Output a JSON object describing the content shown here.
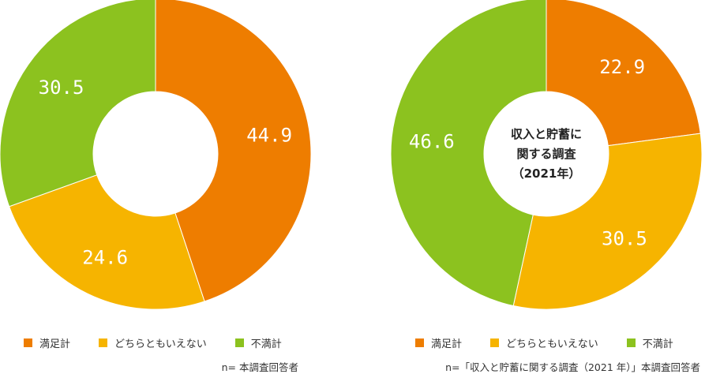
{
  "colors": {
    "satisfied": "#EE7D00",
    "neutral": "#F6B400",
    "dissatisfied": "#8CC21F"
  },
  "chart_data": [
    {
      "type": "pie",
      "title": "",
      "categories": [
        "満足計",
        "どちらともいえない",
        "不満計"
      ],
      "values": [
        44.9,
        24.6,
        30.5
      ],
      "center_label": "",
      "legend": "bottom"
    },
    {
      "type": "pie",
      "title": "",
      "categories": [
        "満足計",
        "どちらともいえない",
        "不満計"
      ],
      "values": [
        22.9,
        30.5,
        46.6
      ],
      "center_label": "収入と貯蓄に 関する調査 （2021年）",
      "legend": "bottom"
    }
  ],
  "left": {
    "legend": [
      "満足計",
      "どちらともいえない",
      "不満計"
    ],
    "note": "n= 本調査回答者"
  },
  "right": {
    "center_lines": [
      "収入と貯蓄に",
      "関する調査",
      "（2021年）"
    ],
    "legend": [
      "満足計",
      "どちらともいえない",
      "不満計"
    ],
    "note": "n=「収入と貯蓄に関する調査（2021 年）」本調査回答者"
  }
}
